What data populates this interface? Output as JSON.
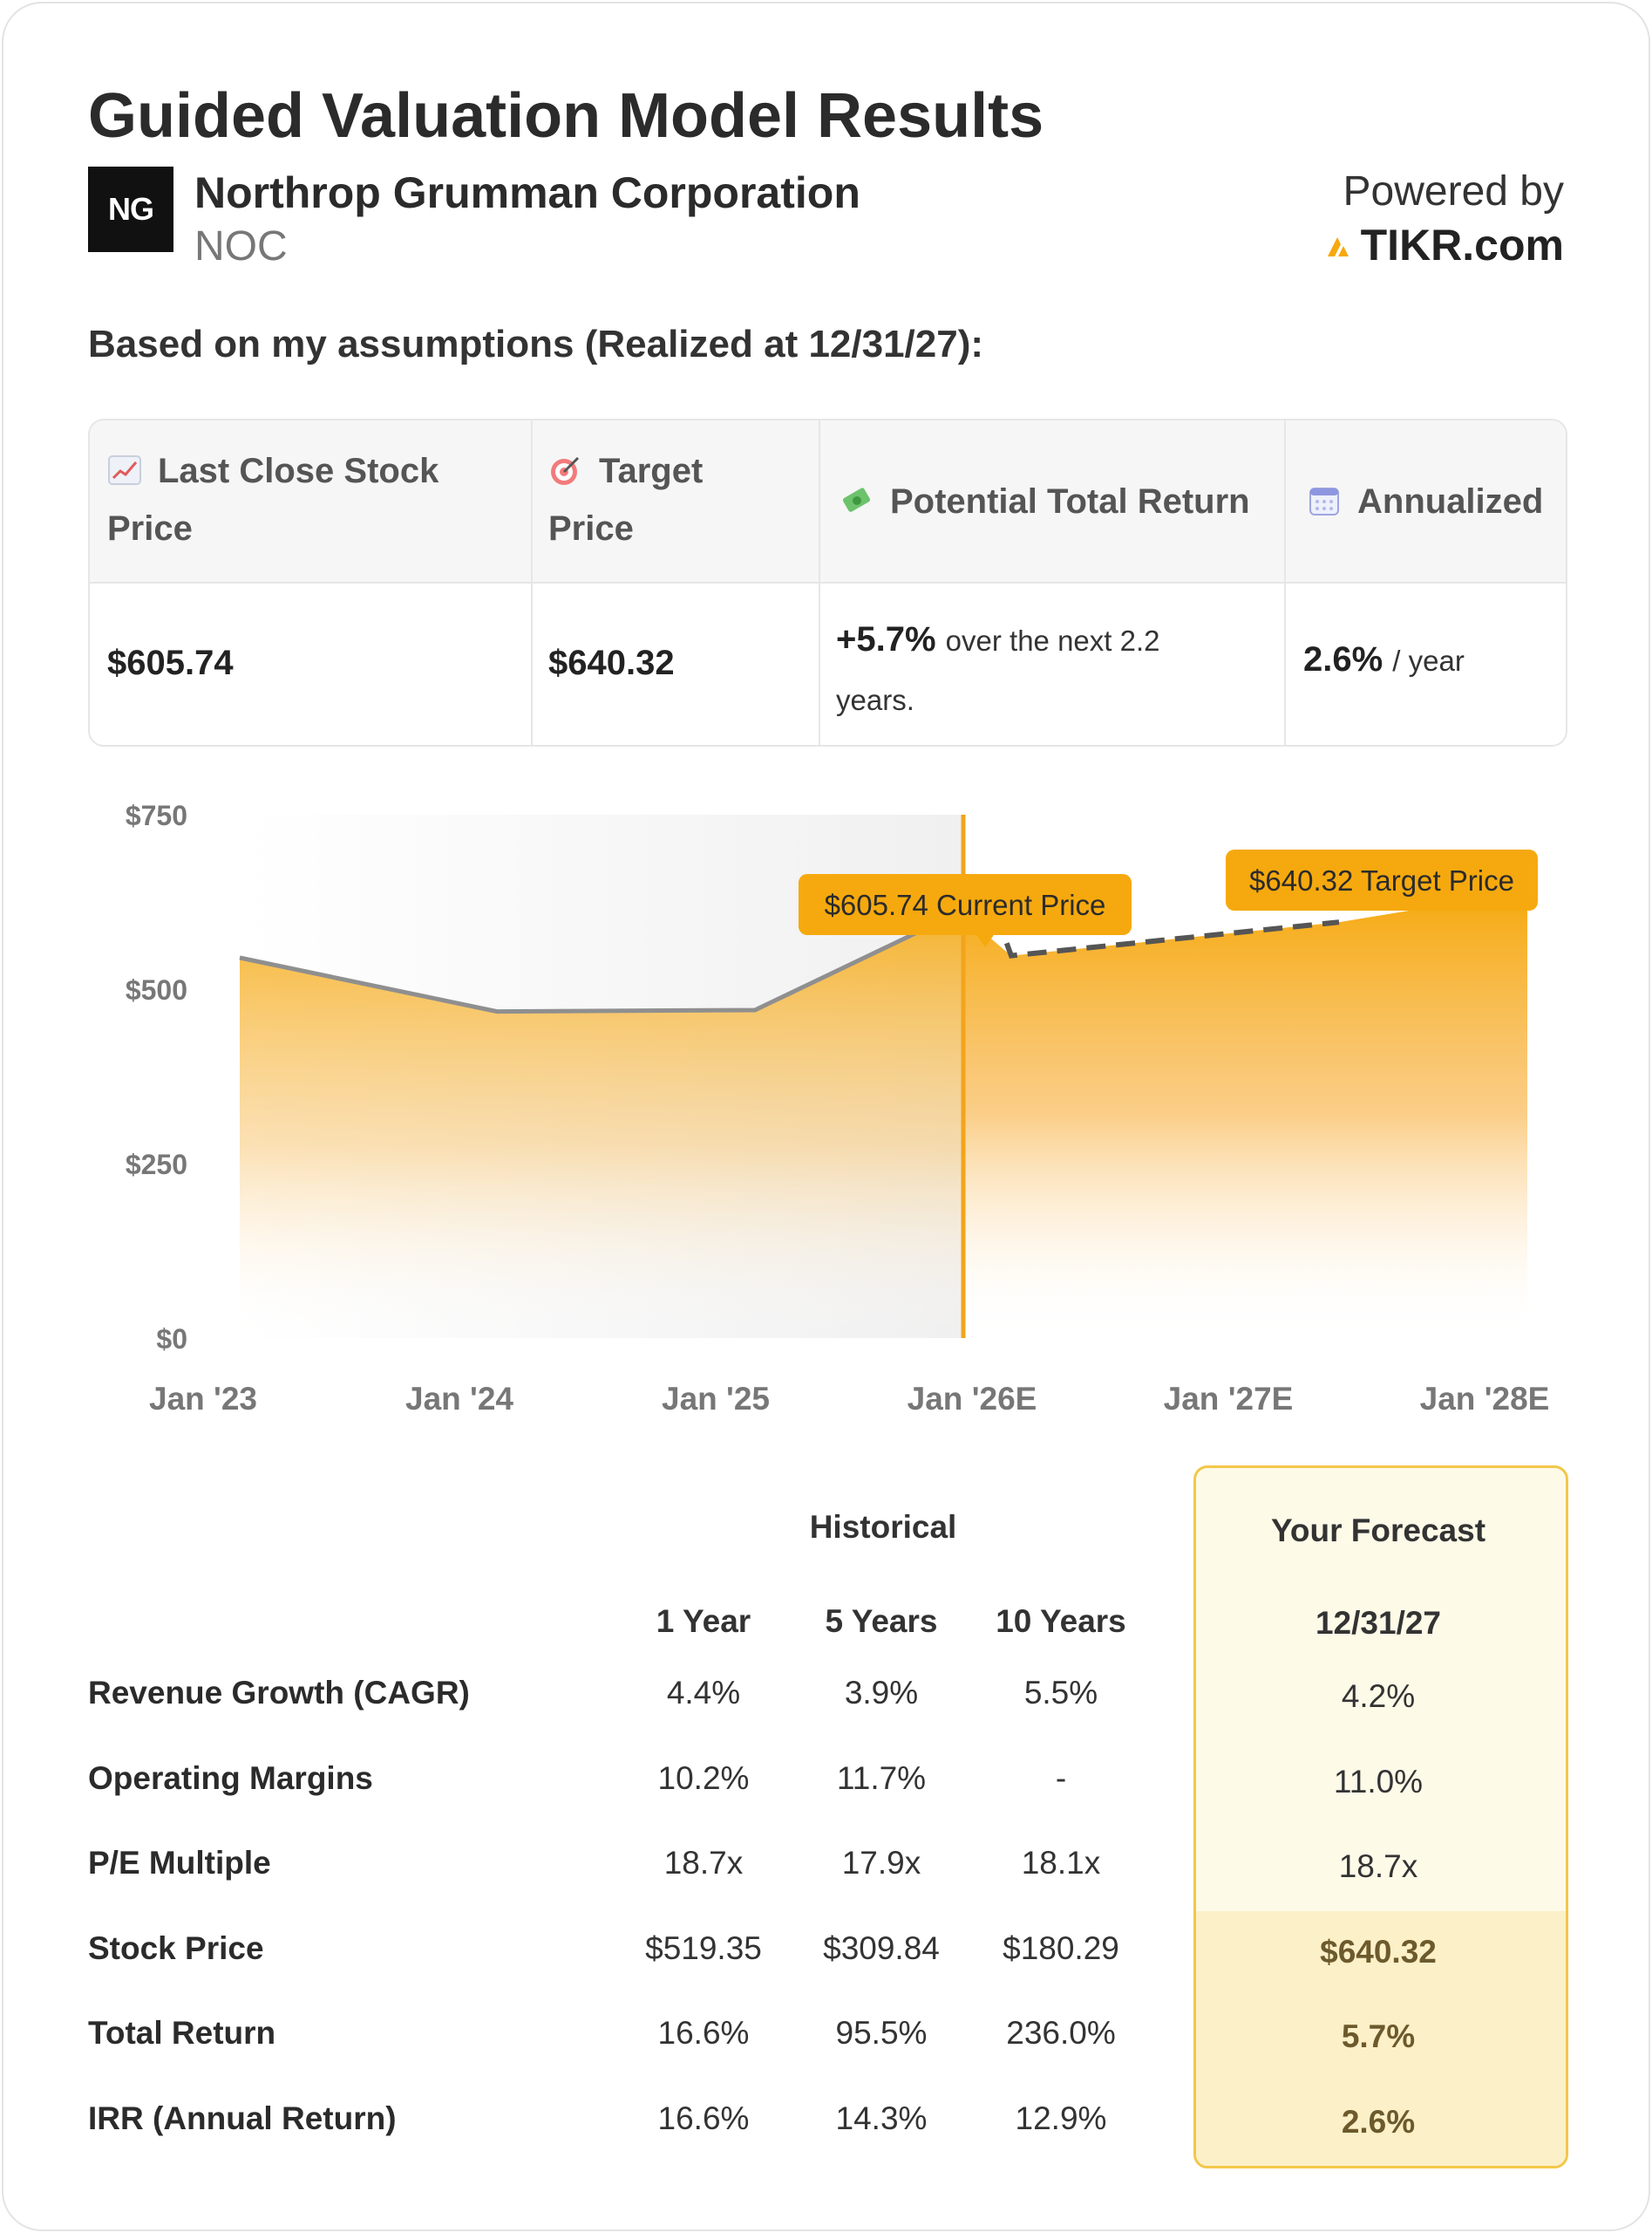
{
  "header": {
    "title": "Guided Valuation Model Results",
    "company": "Northrop Grumman Corporation",
    "ticker": "NOC",
    "logo_text": "NG",
    "powered_by": "Powered by",
    "brand": "TIKR.com"
  },
  "assumptions_label": "Based on my assumptions (Realized at 12/31/27):",
  "summary": {
    "headers": {
      "last_close_1": "Last Close Stock",
      "last_close_2": "Price",
      "target_1": "Target",
      "target_2": "Price",
      "potential": "Potential Total Return",
      "annualized": "Annualized"
    },
    "icons": [
      "chart-up-icon",
      "target-icon",
      "money-icon",
      "calendar-icon"
    ],
    "values": {
      "last_close": "$605.74",
      "target": "$640.32",
      "return_pct": "+5.7%",
      "return_text_1": "over the next 2.2",
      "return_text_2": "years.",
      "annualized_pct": "2.6%",
      "annualized_unit": "/ year"
    }
  },
  "chart_data": {
    "type": "area",
    "x_labels": [
      "Jan '23",
      "Jan '24",
      "Jan '25",
      "Jan '26E",
      "Jan '27E",
      "Jan '28E"
    ],
    "y_ticks": [
      "$750",
      "$500",
      "$250",
      "$0"
    ],
    "ylim": [
      0,
      750
    ],
    "historical": [
      {
        "x": "Jan '23",
        "y": 545
      },
      {
        "x": "Jan '24",
        "y": 468
      },
      {
        "x": "Jan '25",
        "y": 470
      },
      {
        "x": "Dec '25",
        "y": 605.74
      }
    ],
    "forecast": [
      {
        "x": "Jan '26E",
        "y": 548
      },
      {
        "x": "Sep '27E",
        "y": 596
      },
      {
        "x": "Dec '27E",
        "y": 640.32
      }
    ],
    "current_label": "$605.74 Current Price",
    "target_label": "$640.32 Target Price",
    "accent": "#f6a90e"
  },
  "metrics": {
    "historical_title": "Historical",
    "forecast_title": "Your Forecast",
    "columns": [
      "1 Year",
      "5 Years",
      "10 Years"
    ],
    "forecast_date": "12/31/27",
    "rows": [
      {
        "label": "Revenue Growth (CAGR)",
        "values": [
          "4.4%",
          "3.9%",
          "5.5%"
        ],
        "forecast": "4.2%"
      },
      {
        "label": "Operating Margins",
        "values": [
          "10.2%",
          "11.7%",
          "-"
        ],
        "forecast": "11.0%"
      },
      {
        "label": "P/E Multiple",
        "values": [
          "18.7x",
          "17.9x",
          "18.1x"
        ],
        "forecast": "18.7x"
      },
      {
        "label": "Stock Price",
        "values": [
          "$519.35",
          "$309.84",
          "$180.29"
        ],
        "forecast": "$640.32"
      },
      {
        "label": "Total Return",
        "values": [
          "16.6%",
          "95.5%",
          "236.0%"
        ],
        "forecast": "5.7%"
      },
      {
        "label": "IRR (Annual Return)",
        "values": [
          "16.6%",
          "14.3%",
          "12.9%"
        ],
        "forecast": "2.6%"
      }
    ]
  }
}
